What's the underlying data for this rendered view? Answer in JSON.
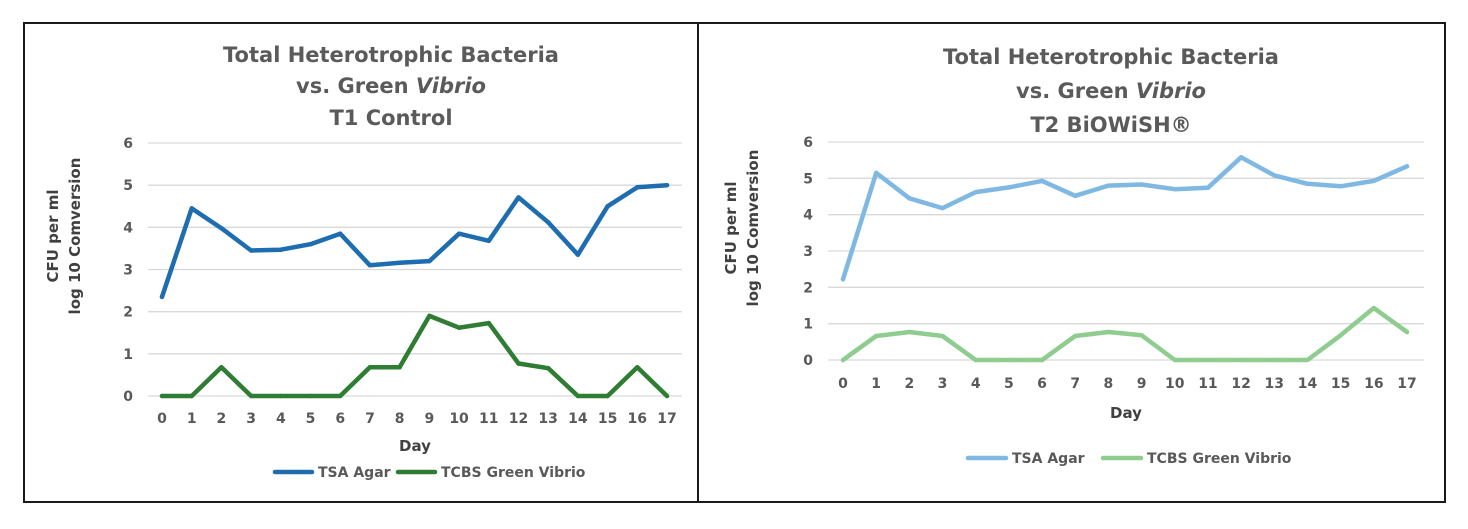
{
  "chart_data": [
    {
      "type": "line",
      "title_lines": [
        "Total Heterotrophic Bacteria",
        "vs. Green ",
        "Vibrio",
        "T1 Control"
      ],
      "title": "Total Heterotrophic Bacteria vs. Green Vibrio T1 Control",
      "xlabel": "Day",
      "ylabel_lines": [
        "CFU  per ml",
        "log 10 Comversion"
      ],
      "ylim": [
        0,
        6
      ],
      "yticks": [
        "0",
        "1",
        "2",
        "3",
        "4",
        "5",
        "6"
      ],
      "categories": [
        "0",
        "1",
        "2",
        "3",
        "4",
        "5",
        "6",
        "7",
        "8",
        "9",
        "10",
        "11",
        "12",
        "13",
        "14",
        "15",
        "16",
        "17"
      ],
      "series": [
        {
          "name": "TSA Agar",
          "color": "#1f6db1",
          "values": [
            2.35,
            4.45,
            3.98,
            3.45,
            3.47,
            3.6,
            3.85,
            3.1,
            3.16,
            3.2,
            3.85,
            3.68,
            4.71,
            4.12,
            3.35,
            4.5,
            4.95,
            5.0
          ]
        },
        {
          "name": "TCBS Green Vibrio",
          "color": "#2e7d32",
          "values": [
            0,
            0,
            0.68,
            0,
            0,
            0,
            0,
            0.68,
            0.68,
            1.9,
            1.62,
            1.73,
            0.77,
            0.66,
            0,
            0,
            0.68,
            0
          ]
        }
      ]
    },
    {
      "type": "line",
      "title_lines": [
        "Total Heterotrophic Bacteria",
        "vs. Green ",
        "Vibrio",
        "T2 BiOWiSH®"
      ],
      "title": "Total Heterotrophic Bacteria vs. Green Vibrio T2 BiOWiSH®",
      "xlabel": "Day",
      "ylabel_lines": [
        "CFU  per ml",
        "log 10 Comversion"
      ],
      "ylim": [
        0,
        6
      ],
      "yticks": [
        "0",
        "1",
        "2",
        "3",
        "4",
        "5",
        "6"
      ],
      "categories": [
        "0",
        "1",
        "2",
        "3",
        "4",
        "5",
        "6",
        "7",
        "8",
        "9",
        "10",
        "11",
        "12",
        "13",
        "14",
        "15",
        "16",
        "17"
      ],
      "series": [
        {
          "name": "TSA Agar",
          "color": "#7fb8e2",
          "values": [
            2.22,
            5.15,
            4.45,
            4.18,
            4.62,
            4.75,
            4.93,
            4.52,
            4.8,
            4.83,
            4.7,
            4.74,
            5.58,
            5.08,
            4.85,
            4.78,
            4.93,
            5.33
          ]
        },
        {
          "name": "TCBS Green Vibrio",
          "color": "#8fcc8f",
          "values": [
            0,
            0.66,
            0.77,
            0.66,
            0,
            0,
            0,
            0.66,
            0.77,
            0.68,
            0,
            0,
            0,
            0,
            0,
            0.68,
            1.43,
            0.77
          ]
        }
      ]
    }
  ]
}
